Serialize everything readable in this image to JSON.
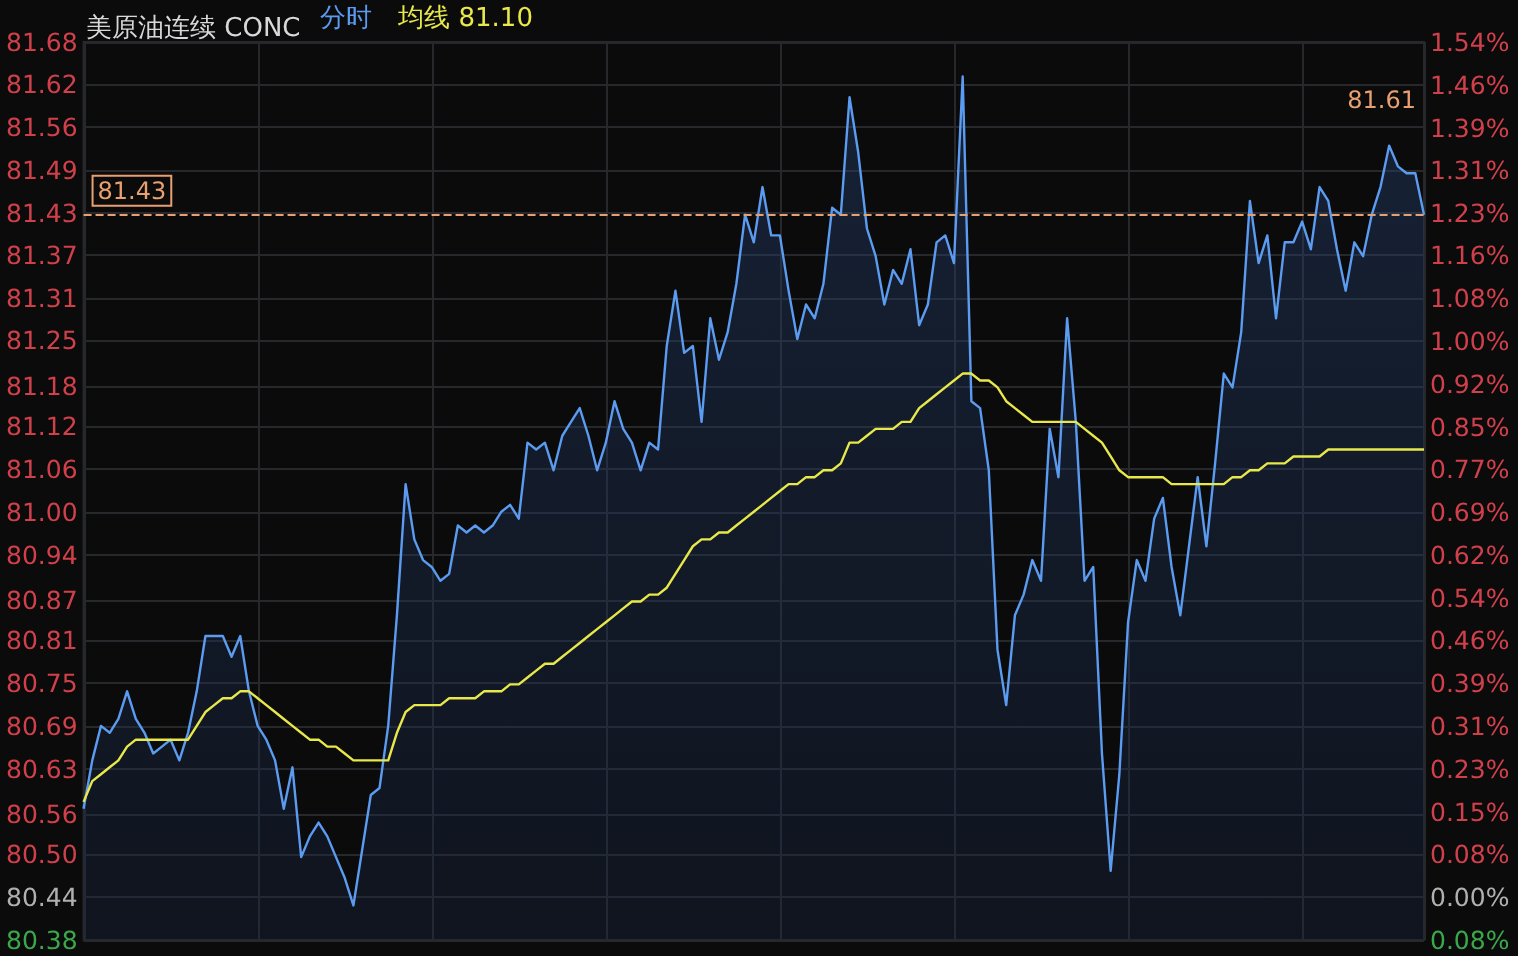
{
  "chart_data": {
    "type": "area",
    "title": "美原油连续 CONC",
    "legend": "top left",
    "grid": true,
    "categories": [
      null,
      null,
      null,
      null,
      null,
      null,
      null,
      null,
      null,
      null,
      null,
      null,
      null,
      null,
      null,
      null,
      null,
      null,
      null,
      null,
      null,
      null,
      null,
      null,
      null,
      null,
      null,
      null,
      null,
      null,
      null,
      null,
      null,
      null,
      null,
      null,
      null,
      null,
      null,
      null,
      null,
      null,
      null,
      null,
      null,
      null,
      null,
      null,
      null,
      null,
      null,
      null,
      null,
      null,
      null,
      null,
      null,
      null,
      null,
      null,
      null,
      null,
      null,
      null,
      null,
      null,
      null,
      null,
      null,
      null,
      null,
      null,
      null,
      null,
      null,
      null,
      null,
      null,
      null,
      null,
      null,
      null,
      null,
      null,
      null,
      null,
      null,
      null,
      null,
      null,
      null,
      null,
      null,
      null,
      null,
      null,
      null,
      null,
      null,
      null,
      null,
      null,
      null,
      null,
      null,
      null,
      null,
      null,
      null,
      null,
      null,
      null,
      null,
      null,
      null,
      null,
      null,
      null,
      null,
      null,
      null,
      null,
      null,
      null,
      null,
      null,
      null,
      null,
      null,
      null,
      null,
      null,
      null,
      null,
      null,
      null,
      null,
      null,
      null,
      null,
      null,
      null,
      null,
      null,
      null,
      null,
      null,
      null,
      null,
      null,
      null,
      null,
      null,
      null,
      null
    ],
    "series": [
      {
        "name": "分时",
        "color": "#5b9bf0",
        "values": [
          80.57,
          80.64,
          80.69,
          80.68,
          80.7,
          80.74,
          80.7,
          80.68,
          80.65,
          80.66,
          80.67,
          80.64,
          80.68,
          80.74,
          80.82,
          80.82,
          80.82,
          80.79,
          80.82,
          80.74,
          80.69,
          80.67,
          80.64,
          80.57,
          80.63,
          80.5,
          80.53,
          80.55,
          80.53,
          80.5,
          80.47,
          80.43,
          80.51,
          80.59,
          80.6,
          80.69,
          80.85,
          81.04,
          80.96,
          80.93,
          80.92,
          80.9,
          80.91,
          80.98,
          80.97,
          80.98,
          80.97,
          80.98,
          81.0,
          81.01,
          80.99,
          81.1,
          81.09,
          81.1,
          81.06,
          81.11,
          81.13,
          81.15,
          81.11,
          81.06,
          81.1,
          81.16,
          81.12,
          81.1,
          81.06,
          81.1,
          81.09,
          81.24,
          81.32,
          81.23,
          81.24,
          81.13,
          81.28,
          81.22,
          81.26,
          81.33,
          81.43,
          81.39,
          81.47,
          81.4,
          81.4,
          81.32,
          81.25,
          81.3,
          81.28,
          81.33,
          81.44,
          81.43,
          81.6,
          81.52,
          81.41,
          81.37,
          81.3,
          81.35,
          81.33,
          81.38,
          81.27,
          81.3,
          81.39,
          81.4,
          81.36,
          81.63,
          81.16,
          81.15,
          81.06,
          80.8,
          80.72,
          80.85,
          80.88,
          80.93,
          80.9,
          81.12,
          81.05,
          81.28,
          81.13,
          80.9,
          80.92,
          80.65,
          80.48,
          80.62,
          80.84,
          80.93,
          80.9,
          80.99,
          81.02,
          80.92,
          80.85,
          80.95,
          81.05,
          80.95,
          81.07,
          81.2,
          81.18,
          81.26,
          81.45,
          81.36,
          81.4,
          81.28,
          81.39,
          81.39,
          81.42,
          81.38,
          81.47,
          81.45,
          81.38,
          81.32,
          81.39,
          81.37,
          81.43,
          81.47,
          81.53,
          81.5,
          81.49,
          81.49,
          81.43
        ]
      },
      {
        "name": "均线",
        "type": "line",
        "color": "#e8e84a",
        "values": [
          80.58,
          80.61,
          80.62,
          80.63,
          80.64,
          80.66,
          80.67,
          80.67,
          80.67,
          80.67,
          80.67,
          80.67,
          80.67,
          80.69,
          80.71,
          80.72,
          80.73,
          80.73,
          80.74,
          80.74,
          80.73,
          80.72,
          80.71,
          80.7,
          80.69,
          80.68,
          80.67,
          80.67,
          80.66,
          80.66,
          80.65,
          80.64,
          80.64,
          80.64,
          80.64,
          80.64,
          80.68,
          80.71,
          80.72,
          80.72,
          80.72,
          80.72,
          80.73,
          80.73,
          80.73,
          80.73,
          80.74,
          80.74,
          80.74,
          80.75,
          80.75,
          80.76,
          80.77,
          80.78,
          80.78,
          80.79,
          80.8,
          80.81,
          80.82,
          80.83,
          80.84,
          80.85,
          80.86,
          80.87,
          80.87,
          80.88,
          80.88,
          80.89,
          80.91,
          80.93,
          80.95,
          80.96,
          80.96,
          80.97,
          80.97,
          80.98,
          80.99,
          81.0,
          81.01,
          81.02,
          81.03,
          81.04,
          81.04,
          81.05,
          81.05,
          81.06,
          81.06,
          81.07,
          81.1,
          81.1,
          81.11,
          81.12,
          81.12,
          81.12,
          81.13,
          81.13,
          81.15,
          81.16,
          81.17,
          81.18,
          81.19,
          81.2,
          81.2,
          81.19,
          81.19,
          81.18,
          81.16,
          81.15,
          81.14,
          81.13,
          81.13,
          81.13,
          81.13,
          81.13,
          81.13,
          81.12,
          81.11,
          81.1,
          81.08,
          81.06,
          81.05,
          81.05,
          81.05,
          81.05,
          81.05,
          81.04,
          81.04,
          81.04,
          81.04,
          81.04,
          81.04,
          81.04,
          81.05,
          81.05,
          81.06,
          81.06,
          81.07,
          81.07,
          81.07,
          81.08,
          81.08,
          81.08,
          81.08,
          81.09,
          81.09,
          81.09,
          81.09,
          81.09,
          81.09,
          81.09,
          81.09,
          81.09,
          81.09,
          81.09,
          81.09
        ]
      }
    ],
    "ylim": [
      80.38,
      81.68
    ],
    "yticks": [
      {
        "value": 80.38,
        "label": "80.38"
      },
      {
        "value": 80.442,
        "label": "80.44"
      },
      {
        "value": 80.504,
        "label": "80.50"
      },
      {
        "value": 80.562,
        "label": "80.56"
      },
      {
        "value": 80.628,
        "label": "80.63"
      },
      {
        "value": 80.69,
        "label": "80.69"
      },
      {
        "value": 80.752,
        "label": "80.75"
      },
      {
        "value": 80.814,
        "label": "80.81"
      },
      {
        "value": 80.872,
        "label": "80.87"
      },
      {
        "value": 80.938,
        "label": "80.94"
      },
      {
        "value": 81.0,
        "label": "81.00"
      },
      {
        "value": 81.062,
        "label": "81.06"
      },
      {
        "value": 81.124,
        "label": "81.12"
      },
      {
        "value": 81.182,
        "label": "81.18"
      },
      {
        "value": 81.248,
        "label": "81.25"
      },
      {
        "value": 81.31,
        "label": "81.31"
      },
      {
        "value": 81.371,
        "label": "81.37"
      },
      {
        "value": 81.433,
        "label": "81.43"
      },
      {
        "value": 81.495,
        "label": "81.49"
      },
      {
        "value": 81.557,
        "label": "81.56"
      },
      {
        "value": 81.619,
        "label": "81.62"
      },
      {
        "value": 81.68,
        "label": "81.68"
      }
    ],
    "y2lim": [
      -0.077,
      1.539
    ],
    "y2ticks": [
      {
        "value": -0.077,
        "label": "0.08%"
      },
      {
        "value": 0,
        "label": "0.00%"
      },
      {
        "value": 0.077,
        "label": "0.08%"
      },
      {
        "value": 0.154,
        "label": "0.15%"
      },
      {
        "value": 0.231,
        "label": "0.23%"
      },
      {
        "value": 0.308,
        "label": "0.31%"
      },
      {
        "value": 0.385,
        "label": "0.39%"
      },
      {
        "value": 0.462,
        "label": "0.46%"
      },
      {
        "value": 0.539,
        "label": "0.54%"
      },
      {
        "value": 0.616,
        "label": "0.62%"
      },
      {
        "value": 0.693,
        "label": "0.69%"
      },
      {
        "value": 0.77,
        "label": "0.77%"
      },
      {
        "value": 0.847,
        "label": "0.85%"
      },
      {
        "value": 0.924,
        "label": "0.92%"
      },
      {
        "value": 1.001,
        "label": "1.00%"
      },
      {
        "value": 1.078,
        "label": "1.08%"
      },
      {
        "value": 1.155,
        "label": "1.16%"
      },
      {
        "value": 1.232,
        "label": "1.23%"
      },
      {
        "value": 1.309,
        "label": "1.31%"
      },
      {
        "value": 1.385,
        "label": "1.39%"
      },
      {
        "value": 1.462,
        "label": "1.46%"
      },
      {
        "value": 1.539,
        "label": "1.54%"
      }
    ],
    "ref_lines": [
      {
        "axis": "y",
        "value": 81.43,
        "label": "81.43",
        "color": "#e8a070",
        "line_style": "dashed"
      }
    ],
    "annotations": [
      "81.10",
      "81.61"
    ]
  }
}
